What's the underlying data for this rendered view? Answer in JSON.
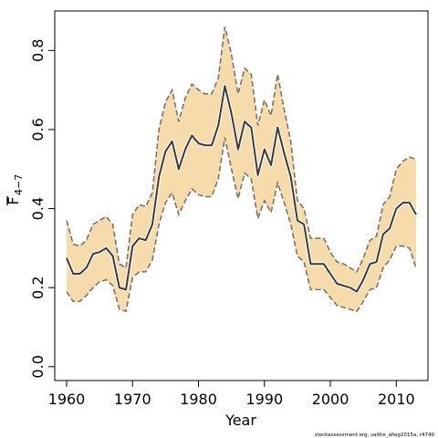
{
  "chart_data": {
    "type": "area",
    "title": "",
    "xlabel": "Year",
    "ylabel": "F",
    "ylabel_subscript": "4−7",
    "xlim": [
      1958.2,
      2014.8
    ],
    "ylim": [
      -0.035,
      0.9
    ],
    "xticks": [
      1960,
      1970,
      1980,
      1990,
      2000,
      2010
    ],
    "xtick_labels": [
      "1960",
      "1970",
      "1980",
      "1990",
      "2000",
      "2010"
    ],
    "yticks": [
      0.0,
      0.2,
      0.4,
      0.6,
      0.8
    ],
    "ytick_labels": [
      "0.0",
      "0.2",
      "0.4",
      "0.6",
      "0.8"
    ],
    "grid": false,
    "colors": {
      "band": "#f7dcab",
      "bound_line": "#7d7467",
      "estimate_line": "#3c3a38"
    },
    "x": [
      1960,
      1961,
      1962,
      1963,
      1964,
      1965,
      1966,
      1967,
      1968,
      1969,
      1970,
      1971,
      1972,
      1973,
      1974,
      1975,
      1976,
      1977,
      1978,
      1979,
      1980,
      1981,
      1982,
      1983,
      1984,
      1985,
      1986,
      1987,
      1988,
      1989,
      1990,
      1991,
      1992,
      1993,
      1994,
      1995,
      1996,
      1997,
      1998,
      1999,
      2000,
      2001,
      2002,
      2003,
      2004,
      2005,
      2006,
      2007,
      2008,
      2009,
      2010,
      2011,
      2012,
      2013
    ],
    "series": [
      {
        "role": "upper",
        "values": [
          0.37,
          0.31,
          0.305,
          0.32,
          0.36,
          0.37,
          0.38,
          0.36,
          0.26,
          0.25,
          0.385,
          0.41,
          0.405,
          0.44,
          0.6,
          0.67,
          0.7,
          0.62,
          0.68,
          0.715,
          0.7,
          0.69,
          0.69,
          0.73,
          0.86,
          0.79,
          0.69,
          0.755,
          0.74,
          0.61,
          0.675,
          0.635,
          0.74,
          0.65,
          0.57,
          0.42,
          0.4,
          0.325,
          0.325,
          0.325,
          0.29,
          0.265,
          0.26,
          0.25,
          0.24,
          0.275,
          0.32,
          0.33,
          0.41,
          0.43,
          0.5,
          0.52,
          0.53,
          0.525
        ]
      },
      {
        "role": "estimate",
        "values": [
          0.275,
          0.235,
          0.235,
          0.25,
          0.285,
          0.29,
          0.3,
          0.28,
          0.2,
          0.195,
          0.305,
          0.325,
          0.32,
          0.36,
          0.48,
          0.545,
          0.57,
          0.5,
          0.55,
          0.585,
          0.565,
          0.56,
          0.56,
          0.61,
          0.71,
          0.64,
          0.55,
          0.62,
          0.605,
          0.485,
          0.55,
          0.51,
          0.605,
          0.54,
          0.48,
          0.37,
          0.36,
          0.26,
          0.26,
          0.26,
          0.235,
          0.21,
          0.205,
          0.2,
          0.19,
          0.22,
          0.26,
          0.265,
          0.335,
          0.35,
          0.4,
          0.415,
          0.415,
          0.385
        ]
      },
      {
        "role": "lower",
        "values": [
          0.19,
          0.165,
          0.165,
          0.18,
          0.2,
          0.215,
          0.22,
          0.205,
          0.145,
          0.14,
          0.225,
          0.24,
          0.24,
          0.27,
          0.36,
          0.415,
          0.44,
          0.385,
          0.42,
          0.45,
          0.435,
          0.43,
          0.43,
          0.475,
          0.58,
          0.5,
          0.425,
          0.49,
          0.475,
          0.375,
          0.42,
          0.39,
          0.465,
          0.415,
          0.36,
          0.28,
          0.265,
          0.195,
          0.195,
          0.195,
          0.175,
          0.155,
          0.15,
          0.145,
          0.14,
          0.165,
          0.195,
          0.2,
          0.25,
          0.27,
          0.305,
          0.305,
          0.3,
          0.25
        ]
      }
    ]
  },
  "footer": {
    "source": "stockassessment.org, saithe_afwg2015a, r4740"
  }
}
